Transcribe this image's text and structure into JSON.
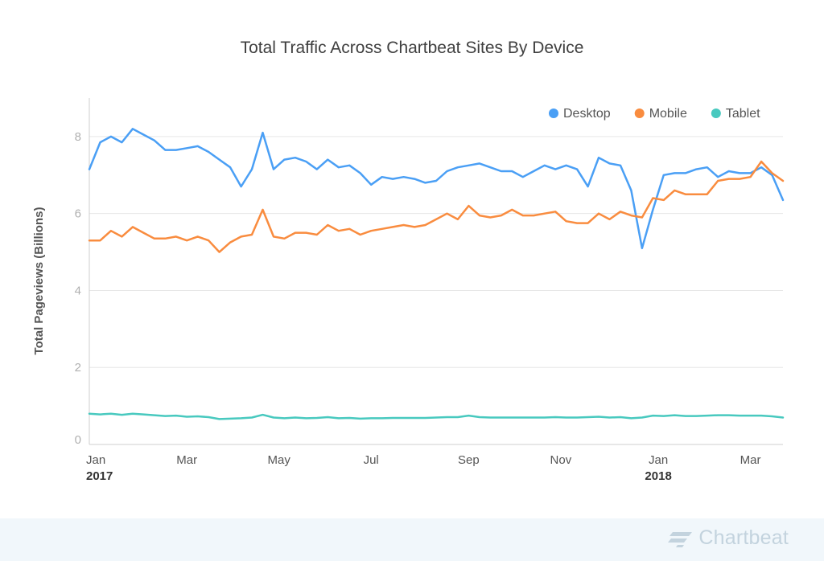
{
  "chart_data": {
    "type": "line",
    "title": "Total Traffic Across Chartbeat Sites By Device",
    "xlabel": "",
    "ylabel": "Total Pageviews (Billions)",
    "ylim": [
      0,
      9
    ],
    "yticks": [
      0,
      2,
      4,
      6,
      8
    ],
    "x_range": [
      1,
      65
    ],
    "x_unit": "week index starting first week of Jan 2017",
    "xticks": [
      {
        "x": 1,
        "label": "Jan",
        "year": "2017"
      },
      {
        "x": 10,
        "label": "Mar",
        "year": ""
      },
      {
        "x": 18.5,
        "label": "May",
        "year": ""
      },
      {
        "x": 27,
        "label": "Jul",
        "year": ""
      },
      {
        "x": 36,
        "label": "Sep",
        "year": ""
      },
      {
        "x": 44.5,
        "label": "Nov",
        "year": ""
      },
      {
        "x": 53.5,
        "label": "Jan",
        "year": "2018"
      },
      {
        "x": 62,
        "label": "Mar",
        "year": ""
      }
    ],
    "legend": {
      "position": "top-right"
    },
    "series": [
      {
        "name": "Desktop",
        "color": "#4a9ff5",
        "values": [
          7.15,
          7.85,
          8.0,
          7.85,
          8.2,
          8.05,
          7.9,
          7.65,
          7.65,
          7.7,
          7.75,
          7.6,
          7.4,
          7.2,
          6.7,
          7.15,
          8.1,
          7.15,
          7.4,
          7.45,
          7.35,
          7.15,
          7.4,
          7.2,
          7.25,
          7.05,
          6.75,
          6.95,
          6.9,
          6.95,
          6.9,
          6.8,
          6.85,
          7.1,
          7.2,
          7.25,
          7.3,
          7.2,
          7.1,
          7.1,
          6.95,
          7.1,
          7.25,
          7.15,
          7.25,
          7.15,
          6.7,
          7.45,
          7.3,
          7.25,
          6.6,
          5.1,
          6.1,
          7.0,
          7.05,
          7.05,
          7.15,
          7.2,
          6.95,
          7.1,
          7.05,
          7.05,
          7.2,
          7.0,
          6.35
        ]
      },
      {
        "name": "Mobile",
        "color": "#f98c3f",
        "values": [
          5.3,
          5.3,
          5.55,
          5.4,
          5.65,
          5.5,
          5.35,
          5.35,
          5.4,
          5.3,
          5.4,
          5.3,
          5.0,
          5.25,
          5.4,
          5.45,
          6.1,
          5.4,
          5.35,
          5.5,
          5.5,
          5.45,
          5.7,
          5.55,
          5.6,
          5.45,
          5.55,
          5.6,
          5.65,
          5.7,
          5.65,
          5.7,
          5.85,
          6.0,
          5.85,
          6.2,
          5.95,
          5.9,
          5.95,
          6.1,
          5.95,
          5.95,
          6.0,
          6.05,
          5.8,
          5.75,
          5.75,
          6.0,
          5.85,
          6.05,
          5.95,
          5.9,
          6.4,
          6.35,
          6.6,
          6.5,
          6.5,
          6.5,
          6.85,
          6.9,
          6.9,
          6.95,
          7.35,
          7.05,
          6.85
        ]
      },
      {
        "name": "Tablet",
        "color": "#48c9bf",
        "values": [
          0.8,
          0.78,
          0.8,
          0.77,
          0.8,
          0.78,
          0.76,
          0.74,
          0.75,
          0.72,
          0.73,
          0.71,
          0.66,
          0.67,
          0.68,
          0.7,
          0.77,
          0.7,
          0.68,
          0.7,
          0.68,
          0.69,
          0.71,
          0.68,
          0.69,
          0.67,
          0.68,
          0.68,
          0.69,
          0.69,
          0.69,
          0.69,
          0.7,
          0.71,
          0.71,
          0.75,
          0.71,
          0.7,
          0.7,
          0.7,
          0.7,
          0.7,
          0.7,
          0.71,
          0.7,
          0.7,
          0.71,
          0.72,
          0.7,
          0.71,
          0.68,
          0.7,
          0.75,
          0.74,
          0.76,
          0.74,
          0.74,
          0.75,
          0.76,
          0.76,
          0.75,
          0.75,
          0.75,
          0.73,
          0.7
        ]
      }
    ]
  },
  "footer": {
    "brand": "Chartbeat"
  }
}
